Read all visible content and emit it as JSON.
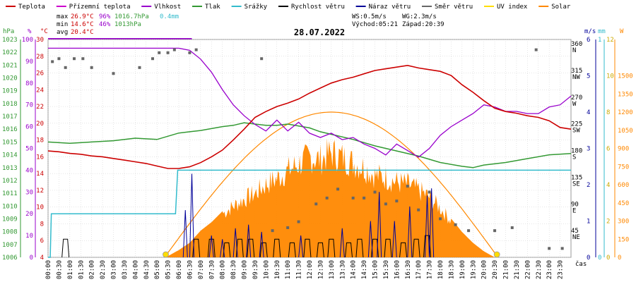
{
  "chart_data": {
    "type": "line",
    "title": "28.07.2022",
    "xlabel": "čas",
    "legend_position": "top",
    "colors": {
      "temp": "#cc0000",
      "feel": "#9900cc",
      "humidity": "#9900cc",
      "pressure": "#339933",
      "rain": "#33bbcc",
      "wind": "#000000",
      "gust": "#000099",
      "dir": "#666666",
      "uv": "#ffdd00",
      "solar": "#ff8800",
      "grid": "#cccccc"
    },
    "legend": [
      {
        "label": "Teplota",
        "color": "#cc0000"
      },
      {
        "label": "Přízemní teplota",
        "color": "#cc00cc"
      },
      {
        "label": "Vlhkost",
        "color": "#9900cc"
      },
      {
        "label": "Tlak",
        "color": "#339933"
      },
      {
        "label": "Srážky",
        "color": "#33bbcc"
      },
      {
        "label": "Rychlost větru",
        "color": "#000000"
      },
      {
        "label": "Náraz větru",
        "color": "#000099"
      },
      {
        "label": "Směr větru",
        "color": "#666666"
      },
      {
        "label": "UV index",
        "color": "#ffdd00"
      },
      {
        "label": "Solar",
        "color": "#ff8800"
      }
    ],
    "stats": {
      "max_label": "max",
      "min_label": "min",
      "avg_label": "avg",
      "max_temp": "26.9°C",
      "max_hum": "96%",
      "max_press": "1016.7hPa",
      "max_rain": "0.4mm",
      "min_temp": "14.6°C",
      "min_hum": "46%",
      "min_press": "1013hPa",
      "avg_temp": "20.4°C"
    },
    "wind_info": {
      "ws": "WS:0.5m/s",
      "wg": "WG:2.3m/s",
      "sunrise": "Východ:05:21",
      "sunset": "Západ:20:39"
    },
    "axes": {
      "left_pressure": {
        "unit": "hPa",
        "range": [
          1006,
          1023
        ],
        "ticks": [
          "1023",
          "1022",
          "1021",
          "1020",
          "1019",
          "1018",
          "1017",
          "1016",
          "1015",
          "1014",
          "1013",
          "1012",
          "1011",
          "1010",
          "1009",
          "1008",
          "1007",
          "1006"
        ]
      },
      "left_humidity": {
        "unit": "%",
        "range": [
          0,
          100
        ],
        "ticks": [
          "100",
          "90",
          "80",
          "70",
          "60",
          "50",
          "40",
          "30",
          "20",
          "10",
          "0"
        ]
      },
      "left_temp": {
        "unit": "°C",
        "range": [
          4,
          30
        ],
        "ticks": [
          "30",
          "28",
          "26",
          "24",
          "22",
          "20",
          "18",
          "16",
          "14",
          "12",
          "10",
          "8",
          "6",
          "4"
        ]
      },
      "right_wind": {
        "unit": "m/s",
        "range": [
          0,
          6
        ],
        "ticks": [
          "6",
          "5",
          "4",
          "3",
          "2",
          "1",
          "0"
        ]
      },
      "right_dir": {
        "ticks": [
          {
            "deg": 360,
            "label": "360",
            "cardinal": "N"
          },
          {
            "deg": 315,
            "label": "315",
            "cardinal": "NW"
          },
          {
            "deg": 270,
            "label": "270",
            "cardinal": "W"
          },
          {
            "deg": 225,
            "label": "225",
            "cardinal": "SW"
          },
          {
            "deg": 180,
            "label": "180",
            "cardinal": "S"
          },
          {
            "deg": 135,
            "label": "135",
            "cardinal": "SE"
          },
          {
            "deg": 90,
            "label": "90",
            "cardinal": "E"
          },
          {
            "deg": 45,
            "label": "45",
            "cardinal": "NE"
          }
        ]
      },
      "right_rain": {
        "unit": "mm",
        "range": [
          0,
          1
        ],
        "ticks": [
          "1",
          "0"
        ]
      },
      "right_uv": {
        "range": [
          0,
          12
        ],
        "ticks": [
          "12",
          "10",
          "8",
          "6",
          "4",
          "2",
          "0"
        ]
      },
      "right_solar": {
        "unit": "W",
        "range": [
          0,
          1800
        ],
        "ticks": [
          "1500",
          "1350",
          "1200",
          "1050",
          "900",
          "750",
          "600",
          "450",
          "300",
          "150",
          "0"
        ]
      },
      "x_ticks": [
        "00:00",
        "00:30",
        "01:00",
        "01:30",
        "02:00",
        "02:30",
        "03:00",
        "03:30",
        "04:00",
        "04:30",
        "05:00",
        "05:30",
        "06:00",
        "06:30",
        "07:00",
        "07:30",
        "08:00",
        "08:30",
        "09:00",
        "09:30",
        "10:00",
        "10:30",
        "11:00",
        "11:30",
        "12:00",
        "12:30",
        "13:00",
        "13:30",
        "14:00",
        "14:30",
        "15:00",
        "15:30",
        "16:00",
        "16:30",
        "17:00",
        "17:30",
        "18:00",
        "18:30",
        "19:00",
        "19:30",
        "20:00",
        "20:30",
        "21:00",
        "21:30",
        "22:00",
        "22:30",
        "23:00",
        "23:30"
      ]
    },
    "series": {
      "temperature": [
        [
          0,
          16.7
        ],
        [
          0.5,
          16.6
        ],
        [
          1,
          16.4
        ],
        [
          1.5,
          16.3
        ],
        [
          2,
          16.1
        ],
        [
          2.5,
          16.0
        ],
        [
          3,
          15.8
        ],
        [
          3.5,
          15.6
        ],
        [
          4,
          15.4
        ],
        [
          4.5,
          15.2
        ],
        [
          5,
          14.9
        ],
        [
          5.5,
          14.6
        ],
        [
          6,
          14.6
        ],
        [
          6.5,
          14.8
        ],
        [
          7,
          15.3
        ],
        [
          7.5,
          16.0
        ],
        [
          8,
          16.8
        ],
        [
          8.5,
          18.0
        ],
        [
          9,
          19.3
        ],
        [
          9.5,
          20.7
        ],
        [
          10,
          21.4
        ],
        [
          10.5,
          22.0
        ],
        [
          11,
          22.4
        ],
        [
          11.5,
          22.9
        ],
        [
          12,
          23.6
        ],
        [
          12.5,
          24.2
        ],
        [
          13,
          24.8
        ],
        [
          13.5,
          25.2
        ],
        [
          14,
          25.5
        ],
        [
          14.5,
          25.9
        ],
        [
          15,
          26.3
        ],
        [
          15.5,
          26.5
        ],
        [
          16,
          26.7
        ],
        [
          16.5,
          26.9
        ],
        [
          17,
          26.6
        ],
        [
          17.5,
          26.4
        ],
        [
          18,
          26.2
        ],
        [
          18.5,
          25.7
        ],
        [
          19,
          24.6
        ],
        [
          19.5,
          23.7
        ],
        [
          20,
          22.7
        ],
        [
          20.5,
          21.8
        ],
        [
          21,
          21.4
        ],
        [
          21.5,
          21.2
        ],
        [
          22,
          20.9
        ],
        [
          22.5,
          20.7
        ],
        [
          23,
          20.3
        ],
        [
          23.5,
          19.5
        ],
        [
          24,
          19.3
        ]
      ],
      "feels_like": [
        [
          0,
          30.1
        ],
        [
          1,
          30.1
        ],
        [
          2,
          30.1
        ],
        [
          3,
          30.1
        ],
        [
          4,
          30.1
        ],
        [
          5,
          30.1
        ],
        [
          6,
          30.1
        ],
        [
          6.6,
          30.1
        ]
      ],
      "humidity": [
        [
          0,
          96
        ],
        [
          5,
          96
        ],
        [
          6,
          96
        ],
        [
          6.5,
          95
        ],
        [
          7,
          91
        ],
        [
          7.5,
          85
        ],
        [
          8,
          77
        ],
        [
          8.5,
          70
        ],
        [
          9,
          65
        ],
        [
          9.5,
          61
        ],
        [
          10,
          58
        ],
        [
          10.5,
          63
        ],
        [
          11,
          58
        ],
        [
          11.5,
          62
        ],
        [
          12,
          57
        ],
        [
          12.5,
          55
        ],
        [
          13,
          57
        ],
        [
          13.5,
          54
        ],
        [
          14,
          55
        ],
        [
          14.5,
          52
        ],
        [
          15,
          50
        ],
        [
          15.5,
          47
        ],
        [
          16,
          52
        ],
        [
          16.5,
          49
        ],
        [
          17,
          46
        ],
        [
          17.5,
          50
        ],
        [
          18,
          56
        ],
        [
          18.5,
          60
        ],
        [
          19,
          63
        ],
        [
          19.5,
          66
        ],
        [
          20,
          70
        ],
        [
          20.5,
          69
        ],
        [
          21,
          67
        ],
        [
          21.5,
          67
        ],
        [
          22,
          66
        ],
        [
          22.5,
          66
        ],
        [
          23,
          69
        ],
        [
          23.5,
          70
        ],
        [
          24,
          74
        ]
      ],
      "pressure": [
        [
          0,
          1015.0
        ],
        [
          1,
          1014.9
        ],
        [
          2,
          1015.0
        ],
        [
          3,
          1015.1
        ],
        [
          4,
          1015.3
        ],
        [
          5,
          1015.2
        ],
        [
          6,
          1015.7
        ],
        [
          6.5,
          1015.8
        ],
        [
          7,
          1015.9
        ],
        [
          8,
          1016.2
        ],
        [
          8.5,
          1016.3
        ],
        [
          9,
          1016.5
        ],
        [
          9.5,
          1016.4
        ],
        [
          10,
          1016.3
        ],
        [
          10.5,
          1016.3
        ],
        [
          11,
          1016.4
        ],
        [
          12,
          1016.1
        ],
        [
          12.5,
          1015.8
        ],
        [
          13,
          1015.6
        ],
        [
          14,
          1015.2
        ],
        [
          15,
          1014.7
        ],
        [
          16,
          1014.3
        ],
        [
          17,
          1013.9
        ],
        [
          18,
          1013.4
        ],
        [
          19,
          1013.1
        ],
        [
          19.5,
          1013.0
        ],
        [
          20,
          1013.2
        ],
        [
          21,
          1013.4
        ],
        [
          22,
          1013.7
        ],
        [
          23,
          1014.0
        ],
        [
          24,
          1014.1
        ]
      ],
      "rain_mm": [
        [
          0,
          0
        ],
        [
          0.1,
          0
        ],
        [
          0.15,
          0.2
        ],
        [
          5.85,
          0.2
        ],
        [
          5.95,
          0.4
        ],
        [
          24,
          0.4
        ]
      ],
      "solar_curve_max_w": 1200,
      "solar_envelope": [
        [
          5.4,
          0
        ],
        [
          6,
          60
        ],
        [
          6.5,
          120
        ],
        [
          7,
          220
        ],
        [
          7.5,
          290
        ],
        [
          8,
          380
        ],
        [
          8.5,
          450
        ],
        [
          9,
          510
        ],
        [
          9.5,
          560
        ],
        [
          10,
          640
        ],
        [
          10.5,
          690
        ],
        [
          11,
          760
        ],
        [
          11.5,
          820
        ],
        [
          12,
          880
        ],
        [
          12.5,
          860
        ],
        [
          13,
          920
        ],
        [
          13.5,
          880
        ],
        [
          14,
          830
        ],
        [
          14.5,
          790
        ],
        [
          15,
          720
        ],
        [
          15.5,
          700
        ],
        [
          16,
          660
        ],
        [
          16.5,
          640
        ],
        [
          17,
          590
        ],
        [
          17.5,
          530
        ],
        [
          18,
          430
        ],
        [
          18.5,
          320
        ],
        [
          19,
          210
        ],
        [
          19.5,
          120
        ],
        [
          20,
          50
        ],
        [
          20.5,
          0
        ]
      ],
      "uv_markers": [
        [
          5.4,
          0
        ],
        [
          20.6,
          0
        ]
      ],
      "wind_dir_samples": [
        [
          0.2,
          330
        ],
        [
          0.5,
          335
        ],
        [
          0.8,
          320
        ],
        [
          1.2,
          335
        ],
        [
          1.6,
          335
        ],
        [
          2,
          320
        ],
        [
          3,
          310
        ],
        [
          4.2,
          320
        ],
        [
          4.8,
          335
        ],
        [
          5.1,
          345
        ],
        [
          5.5,
          345
        ],
        [
          5.8,
          350
        ],
        [
          6.5,
          345
        ],
        [
          6.8,
          350
        ],
        [
          9.8,
          335
        ],
        [
          10.3,
          45
        ],
        [
          11,
          50
        ],
        [
          11.5,
          60
        ],
        [
          12.3,
          90
        ],
        [
          12.8,
          100
        ],
        [
          13.3,
          115
        ],
        [
          14,
          100
        ],
        [
          14.5,
          100
        ],
        [
          15,
          110
        ],
        [
          15.5,
          90
        ],
        [
          16,
          95
        ],
        [
          16.5,
          120
        ],
        [
          17,
          80
        ],
        [
          17.5,
          110
        ],
        [
          18,
          65
        ],
        [
          18.7,
          55
        ],
        [
          19.3,
          45
        ],
        [
          20.5,
          45
        ],
        [
          21.3,
          50
        ],
        [
          22.4,
          350
        ],
        [
          23,
          15
        ],
        [
          23.6,
          15
        ]
      ],
      "wind_speed_peaks": [
        [
          0.8,
          0.5
        ],
        [
          6.8,
          0.5
        ],
        [
          7.5,
          0.5
        ],
        [
          8.2,
          0.4
        ],
        [
          8.8,
          0.5
        ],
        [
          9.3,
          0.5
        ],
        [
          9.9,
          0.4
        ],
        [
          10.5,
          0.5
        ],
        [
          11.2,
          0.4
        ],
        [
          11.9,
          0.5
        ],
        [
          12.5,
          0.4
        ],
        [
          13.0,
          0.5
        ],
        [
          13.8,
          0.4
        ],
        [
          14.3,
          0.5
        ],
        [
          15.0,
          0.5
        ],
        [
          15.6,
          0.5
        ],
        [
          16.3,
          0.4
        ],
        [
          16.9,
          0.5
        ],
        [
          17.4,
          0.6
        ]
      ],
      "gust_peaks": [
        [
          6.3,
          1.3
        ],
        [
          6.6,
          2.3
        ],
        [
          7.5,
          0.6
        ],
        [
          8.0,
          0.5
        ],
        [
          8.6,
          0.8
        ],
        [
          9.2,
          0.9
        ],
        [
          9.8,
          0.7
        ],
        [
          11.6,
          0.6
        ],
        [
          13.5,
          0.8
        ],
        [
          14.8,
          1.0
        ],
        [
          15.2,
          1.8
        ],
        [
          15.9,
          1.0
        ],
        [
          16.6,
          1.4
        ],
        [
          17.4,
          1.7
        ],
        [
          17.6,
          1.9
        ]
      ]
    }
  }
}
